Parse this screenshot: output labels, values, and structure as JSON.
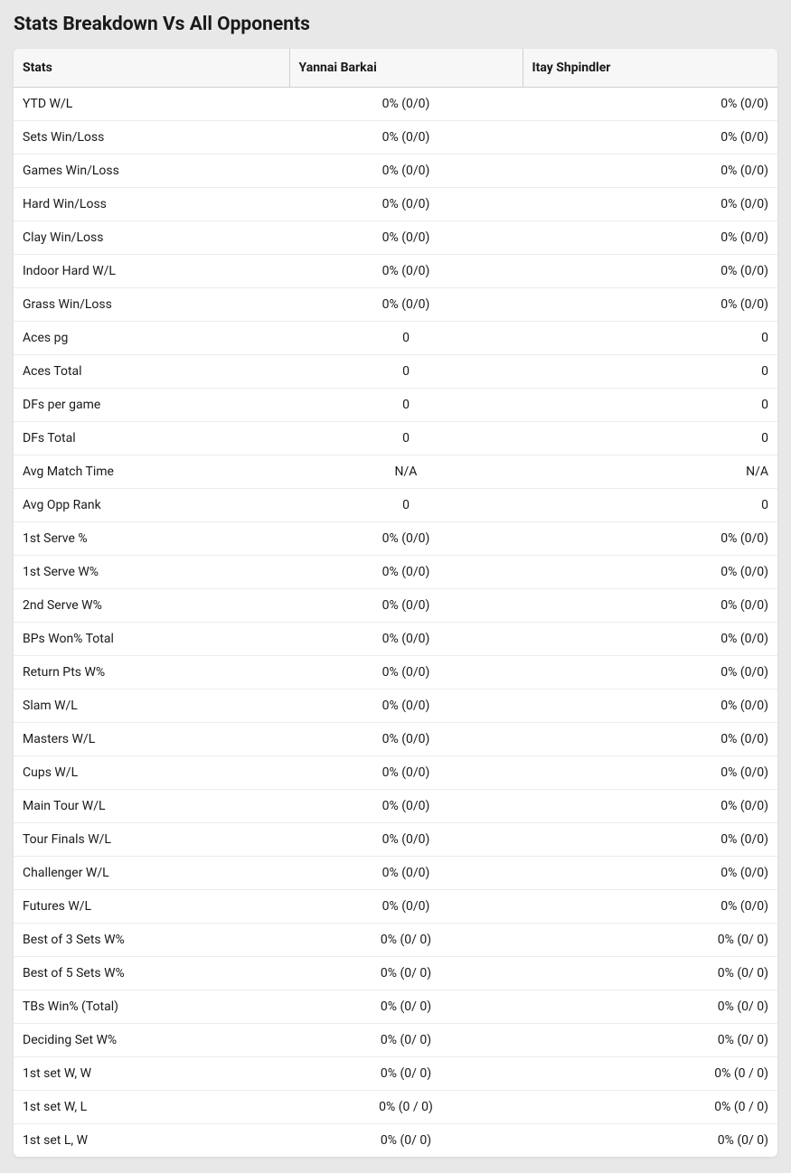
{
  "title": "Stats Breakdown Vs All Opponents",
  "table": {
    "headers": [
      "Stats",
      "Yannai Barkai",
      "Itay Shpindler"
    ],
    "rows": [
      {
        "label": "YTD W/L",
        "p1": "0% (0/0)",
        "p2": "0% (0/0)"
      },
      {
        "label": "Sets Win/Loss",
        "p1": "0% (0/0)",
        "p2": "0% (0/0)"
      },
      {
        "label": "Games Win/Loss",
        "p1": "0% (0/0)",
        "p2": "0% (0/0)"
      },
      {
        "label": "Hard Win/Loss",
        "p1": "0% (0/0)",
        "p2": "0% (0/0)"
      },
      {
        "label": "Clay Win/Loss",
        "p1": "0% (0/0)",
        "p2": "0% (0/0)"
      },
      {
        "label": "Indoor Hard W/L",
        "p1": "0% (0/0)",
        "p2": "0% (0/0)"
      },
      {
        "label": "Grass Win/Loss",
        "p1": "0% (0/0)",
        "p2": "0% (0/0)"
      },
      {
        "label": "Aces pg",
        "p1": "0",
        "p2": "0"
      },
      {
        "label": "Aces Total",
        "p1": "0",
        "p2": "0"
      },
      {
        "label": "DFs per game",
        "p1": "0",
        "p2": "0"
      },
      {
        "label": "DFs Total",
        "p1": "0",
        "p2": "0"
      },
      {
        "label": "Avg Match Time",
        "p1": "N/A",
        "p2": "N/A"
      },
      {
        "label": "Avg Opp Rank",
        "p1": "0",
        "p2": "0"
      },
      {
        "label": "1st Serve %",
        "p1": "0% (0/0)",
        "p2": "0% (0/0)"
      },
      {
        "label": "1st Serve W%",
        "p1": "0% (0/0)",
        "p2": "0% (0/0)"
      },
      {
        "label": "2nd Serve W%",
        "p1": "0% (0/0)",
        "p2": "0% (0/0)"
      },
      {
        "label": "BPs Won% Total",
        "p1": "0% (0/0)",
        "p2": "0% (0/0)"
      },
      {
        "label": "Return Pts W%",
        "p1": "0% (0/0)",
        "p2": "0% (0/0)"
      },
      {
        "label": "Slam W/L",
        "p1": "0% (0/0)",
        "p2": "0% (0/0)"
      },
      {
        "label": "Masters W/L",
        "p1": "0% (0/0)",
        "p2": "0% (0/0)"
      },
      {
        "label": "Cups W/L",
        "p1": "0% (0/0)",
        "p2": "0% (0/0)"
      },
      {
        "label": "Main Tour W/L",
        "p1": "0% (0/0)",
        "p2": "0% (0/0)"
      },
      {
        "label": "Tour Finals W/L",
        "p1": "0% (0/0)",
        "p2": "0% (0/0)"
      },
      {
        "label": "Challenger W/L",
        "p1": "0% (0/0)",
        "p2": "0% (0/0)"
      },
      {
        "label": "Futures W/L",
        "p1": "0% (0/0)",
        "p2": "0% (0/0)"
      },
      {
        "label": "Best of 3 Sets W%",
        "p1": "0% (0/ 0)",
        "p2": "0% (0/ 0)"
      },
      {
        "label": "Best of 5 Sets W%",
        "p1": "0% (0/ 0)",
        "p2": "0% (0/ 0)"
      },
      {
        "label": "TBs Win% (Total)",
        "p1": "0% (0/ 0)",
        "p2": "0% (0/ 0)"
      },
      {
        "label": "Deciding Set W%",
        "p1": "0% (0/ 0)",
        "p2": "0% (0/ 0)"
      },
      {
        "label": "1st set W, W",
        "p1": "0% (0/ 0)",
        "p2": "0% (0 / 0)"
      },
      {
        "label": "1st set W, L",
        "p1": "0% (0 / 0)",
        "p2": "0% (0 / 0)"
      },
      {
        "label": "1st set L, W",
        "p1": "0% (0/ 0)",
        "p2": "0% (0/ 0)"
      }
    ]
  }
}
